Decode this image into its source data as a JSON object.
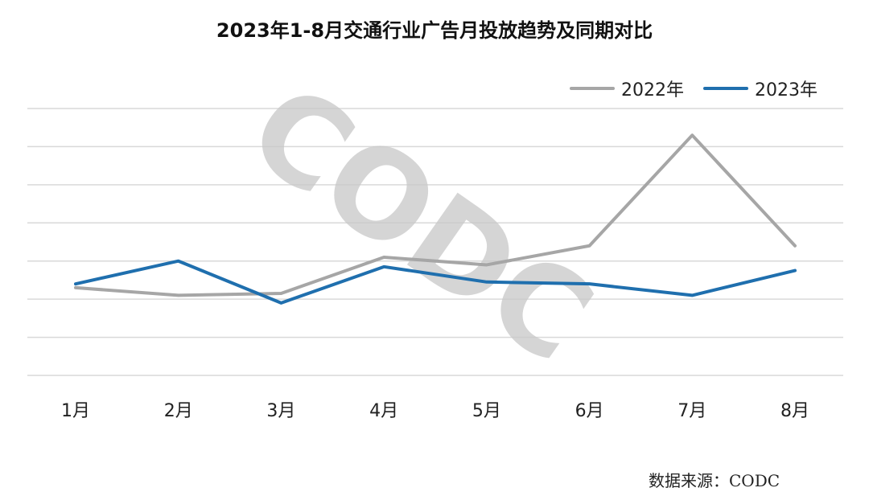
{
  "chart_data": {
    "type": "line",
    "title": "2023年1-8月交通行业广告月投放趋势及同期对比",
    "categories": [
      "1月",
      "2月",
      "3月",
      "4月",
      "5月",
      "6月",
      "7月",
      "8月"
    ],
    "series": [
      {
        "name": "2022年",
        "color": "#a6a6a6",
        "values": [
          2.3,
          2.1,
          2.15,
          3.1,
          2.9,
          3.4,
          6.3,
          3.4
        ]
      },
      {
        "name": "2023年",
        "color": "#1f6fae",
        "values": [
          2.4,
          3.0,
          1.9,
          2.85,
          2.45,
          2.4,
          2.1,
          2.75
        ]
      }
    ],
    "ylim": [
      0,
      7
    ],
    "y_axis_labels_visible": false,
    "grid": true,
    "legend_position": "top-right"
  },
  "watermark": "CODC",
  "source": "数据来源：CODC"
}
